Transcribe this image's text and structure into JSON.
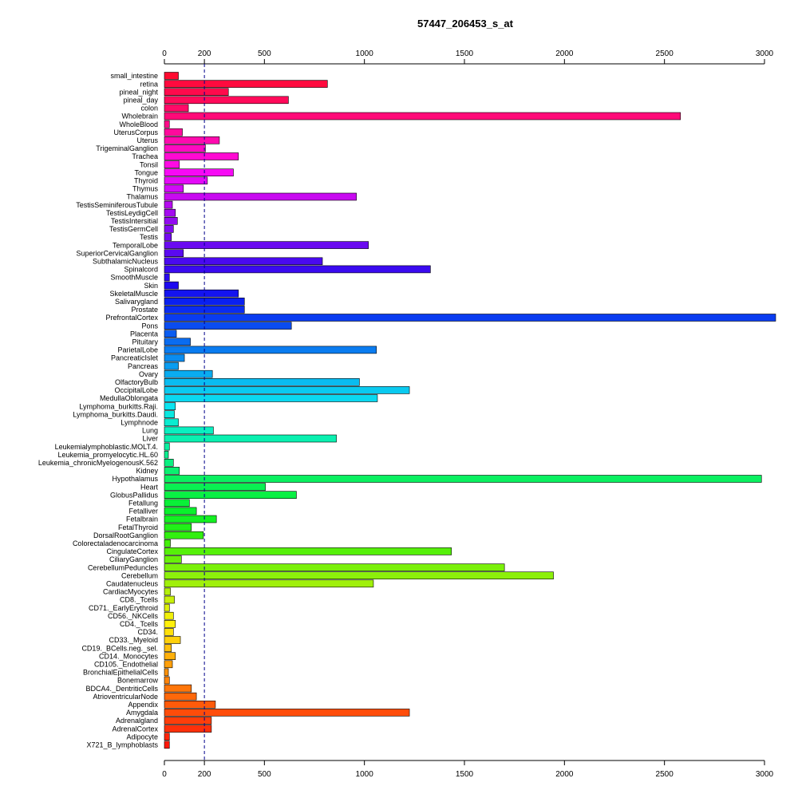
{
  "chart_data": {
    "type": "bar",
    "orientation": "horizontal",
    "title": "57447_206453_s_at",
    "xlim": [
      0,
      3000
    ],
    "xticks": [
      0,
      200,
      500,
      1000,
      1500,
      2000,
      2500,
      3000
    ],
    "reference_line": 200,
    "categories": [
      "small_intestine",
      "retina",
      "pineal_night",
      "pineal_day",
      "colon",
      "Wholebrain",
      "WholeBlood",
      "UterusCorpus",
      "Uterus",
      "TrigeminalGanglion",
      "Trachea",
      "Tonsil",
      "Tongue",
      "Thyroid",
      "Thymus",
      "Thalamus",
      "TestisSeminiferousTubule",
      "TestisLeydigCell",
      "TestisIntersitial",
      "TestisGermCell",
      "Testis",
      "TemporalLobe",
      "SuperiorCervicalGanglion",
      "SubthalamicNucleus",
      "Spinalcord",
      "SmoothMuscle",
      "Skin",
      "SkeletalMuscle",
      "Salivarygland",
      "Prostate",
      "PrefrontalCortex",
      "Pons",
      "Placenta",
      "Pituitary",
      "ParietalLobe",
      "PancreaticIslet",
      "Pancreas",
      "Ovary",
      "OlfactoryBulb",
      "OccipitalLobe",
      "MedullaOblongata",
      "Lymphoma_burkitts.Raji.",
      "Lymphoma_burkitts.Daudi.",
      "Lymphnode",
      "Lung",
      "Liver",
      "Leukemialymphoblastic.MOLT.4.",
      "Leukemia_promyelocytic.HL.60",
      "Leukemia_chronicMyelogenousK.562",
      "Kidney",
      "Hypothalamus",
      "Heart",
      "GlobusPallidus",
      "Fetallung",
      "Fetalliver",
      "Fetalbrain",
      "FetalThyroid",
      "DorsalRootGanglion",
      "Colorectaladenocarcinoma",
      "CingulateCortex",
      "CiliaryGanglion",
      "CerebellumPeduncles",
      "Cerebellum",
      "Caudatenucleus",
      "CardiacMyocytes",
      "CD8._Tcells",
      "CD71._EarlyErythroid",
      "CD56._NKCells",
      "CD4._Tcells",
      "CD34.",
      "CD33._Myeloid",
      "CD19._BCells.neg._sel.",
      "CD14._Monocytes",
      "CD105._Endothelial",
      "BronchialEpithelialCells",
      "Bonemarrow",
      "BDCA4._DentriticCells",
      "AtrioventricularNode",
      "Appendix",
      "Amygdala",
      "Adrenalgland",
      "AdrenalCortex",
      "Adipocyte",
      "X721_B_lymphoblasts"
    ],
    "values": [
      70,
      815,
      320,
      620,
      120,
      2580,
      25,
      90,
      275,
      205,
      370,
      75,
      345,
      215,
      95,
      960,
      40,
      55,
      65,
      45,
      35,
      1020,
      95,
      790,
      1330,
      25,
      70,
      370,
      400,
      400,
      3060,
      635,
      60,
      130,
      1060,
      100,
      70,
      240,
      975,
      1225,
      1065,
      55,
      50,
      70,
      245,
      860,
      25,
      20,
      45,
      75,
      2985,
      505,
      660,
      125,
      160,
      260,
      135,
      195,
      30,
      1435,
      85,
      1700,
      1945,
      1045,
      30,
      50,
      25,
      45,
      55,
      45,
      80,
      35,
      55,
      40,
      20,
      25,
      135,
      160,
      255,
      1225,
      235,
      235,
      25,
      25
    ],
    "colors": [
      "#ff0a30",
      "#ff0a3e",
      "#ff0a4c",
      "#ff0a5a",
      "#ff0a68",
      "#ff0a78",
      "#ff0a8a",
      "#ff0a9c",
      "#ff0aae",
      "#ff0ac0",
      "#ff0ad2",
      "#ff0ae4",
      "#f70af5",
      "#e40af8",
      "#d20af8",
      "#c80af0",
      "#b60af0",
      "#a40af0",
      "#920af0",
      "#800af0",
      "#740af0",
      "#6a0af0",
      "#5a0af0",
      "#4a0af0",
      "#3a0af0",
      "#2a0af0",
      "#1e0af0",
      "#1414f0",
      "#0a20f0",
      "#0a2cf0",
      "#0a3cf0",
      "#0a4cf0",
      "#0a5cf0",
      "#0a6cf0",
      "#0a7cf0",
      "#0a8cf0",
      "#0a9cf0",
      "#0aacf0",
      "#0abcf0",
      "#0acaf0",
      "#0ad8f0",
      "#0ae4f0",
      "#0ae8e0",
      "#0aecd0",
      "#0aefc0",
      "#0af0b0",
      "#0af0a0",
      "#0af090",
      "#0af080",
      "#0af070",
      "#0af060",
      "#0af052",
      "#0af044",
      "#0af038",
      "#0af02c",
      "#14f022",
      "#22f018",
      "#32f010",
      "#44f00a",
      "#56f00a",
      "#68f00a",
      "#7af00a",
      "#8cf00a",
      "#a0f00a",
      "#b4f00a",
      "#c8f00a",
      "#dcf00a",
      "#f0f00a",
      "#fff00a",
      "#ffe00a",
      "#ffd00a",
      "#ffc00a",
      "#ffb00a",
      "#ffa00a",
      "#ff920a",
      "#ff840a",
      "#ff760a",
      "#ff680a",
      "#ff5a0a",
      "#ff4c0a",
      "#ff3e0a",
      "#ff300a",
      "#ff240a",
      "#ff180a"
    ]
  }
}
